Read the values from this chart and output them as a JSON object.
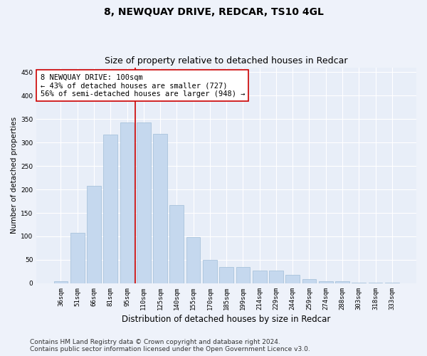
{
  "title": "8, NEWQUAY DRIVE, REDCAR, TS10 4GL",
  "subtitle": "Size of property relative to detached houses in Redcar",
  "xlabel": "Distribution of detached houses by size in Redcar",
  "ylabel": "Number of detached properties",
  "categories": [
    "36sqm",
    "51sqm",
    "66sqm",
    "81sqm",
    "95sqm",
    "110sqm",
    "125sqm",
    "140sqm",
    "155sqm",
    "170sqm",
    "185sqm",
    "199sqm",
    "214sqm",
    "229sqm",
    "244sqm",
    "259sqm",
    "274sqm",
    "288sqm",
    "303sqm",
    "318sqm",
    "333sqm"
  ],
  "values": [
    5,
    107,
    208,
    317,
    342,
    342,
    318,
    167,
    99,
    50,
    35,
    35,
    27,
    27,
    18,
    9,
    4,
    4,
    1,
    1,
    1
  ],
  "bar_color": "#c5d8ee",
  "bar_edge_color": "#a0bdd8",
  "vline_x_index": 4.5,
  "vline_color": "#cc0000",
  "annotation_line1": "8 NEWQUAY DRIVE: 100sqm",
  "annotation_line2": "← 43% of detached houses are smaller (727)",
  "annotation_line3": "56% of semi-detached houses are larger (948) →",
  "annotation_box_color": "#ffffff",
  "annotation_box_edge": "#cc0000",
  "ylim": [
    0,
    460
  ],
  "yticks": [
    0,
    50,
    100,
    150,
    200,
    250,
    300,
    350,
    400,
    450
  ],
  "footer_line1": "Contains HM Land Registry data © Crown copyright and database right 2024.",
  "footer_line2": "Contains public sector information licensed under the Open Government Licence v3.0.",
  "bg_color": "#eef2fa",
  "plot_bg_color": "#e8eef8",
  "grid_color": "#ffffff",
  "title_fontsize": 10,
  "subtitle_fontsize": 9,
  "xlabel_fontsize": 8.5,
  "ylabel_fontsize": 7.5,
  "tick_fontsize": 6.5,
  "annotation_fontsize": 7.5,
  "footer_fontsize": 6.5
}
